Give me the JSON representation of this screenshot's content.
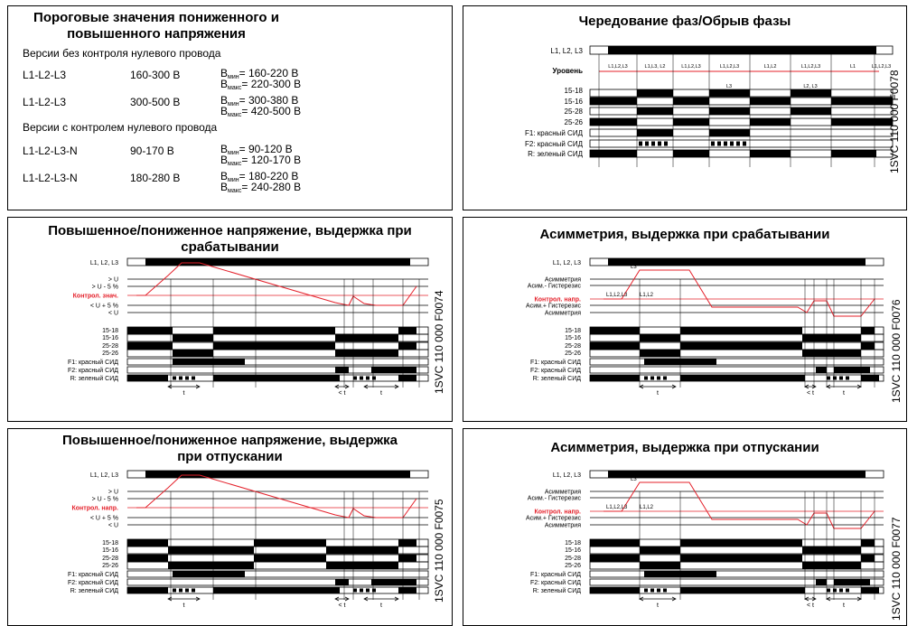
{
  "panels": {
    "voltage_table": {
      "title": "Пороговые значения пониженного и повышенного напряжения",
      "section1": "Версии без контроля нулевого провода",
      "section2": "Версии с контролем нулевого провода",
      "bmin": "мин",
      "bmax": "макс",
      "rows": [
        {
          "phases": "L1-L2-L3",
          "range": "160-300 В",
          "min": "160-220 В",
          "max": "220-300 В"
        },
        {
          "phases": "L1-L2-L3",
          "range": "300-500 В",
          "min": "300-380 В",
          "max": "420-500 В"
        },
        {
          "phases": "L1-L2-L3-N",
          "range": "90-170 В",
          "min": "90-120 В",
          "max": "120-170 В"
        },
        {
          "phases": "L1-L2-L3-N",
          "range": "180-280 В",
          "min": "180-220 В",
          "max": "240-280 В"
        }
      ]
    },
    "phase_seq": {
      "title": "Чередование фаз/Обрыв фазы",
      "code": "1SVC 110 000 F0078",
      "labels": [
        "L1, L2, L3",
        "Уровень",
        "15-18",
        "15-16",
        "25-28",
        "25-26",
        "F1: красный СИД",
        "F2: красный СИД",
        "R: зеленый СИД"
      ],
      "seg_labels": [
        "L1,L2,L3",
        "L1,L3, L2",
        "L1,L2,L3",
        "L1,L2,L3",
        "L1,L2",
        "L1,L2,L3",
        "L1",
        "L1,L2,L3"
      ],
      "low_labels": [
        "L3",
        "L2, L3"
      ]
    },
    "ov_uv_on": {
      "title": "Повышенное/пониженное напряжение, выдержка при срабатывании",
      "code": "1SVC 110 000 F0074",
      "labels": [
        "L1, L2, L3",
        "> U",
        "> U - 5 %",
        "Контрол. знач.",
        "< U + 5 %",
        "< U",
        "15-18",
        "15-16",
        "25-28",
        "25-26",
        "F1: красный СИД",
        "F2: красный СИД",
        "R: зеленый СИД"
      ],
      "t": "t",
      "t_less": "< t"
    },
    "asym_on": {
      "title": "Асимметрия, выдержка при срабатывании",
      "code": "1SVC 110 000 F0076",
      "labels": [
        "L1, L2, L3",
        "Асимметрия",
        "Асим.- Гистерезис",
        "Контрол. напр.",
        "Асим.+ Гистерезис",
        "Асимметрия",
        "15-18",
        "15-16",
        "25-28",
        "25-26",
        "F1: красный СИД",
        "F2: красный СИД",
        "R: зеленый СИД"
      ],
      "curve_labels": [
        "L3",
        "L1,L2,L3",
        "L1,L2"
      ],
      "t": "t",
      "t_less": "< t"
    },
    "ov_uv_off": {
      "title": "Повышенное/пониженное напряжение, выдержка при отпускании",
      "code": "1SVC 110 000 F0075",
      "labels": [
        "L1, L2, L3",
        "> U",
        "> U - 5 %",
        "Контрол. напр.",
        "< U + 5 %",
        "< U",
        "15-18",
        "15-16",
        "25-28",
        "25-26",
        "F1: красный СИД",
        "F2: красный СИД",
        "R: зеленый СИД"
      ],
      "t": "t",
      "t_less": "< t"
    },
    "asym_off": {
      "title": "Асимметрия, выдержка при отпускании",
      "code": "1SVC 110 000 F0077",
      "labels": [
        "L1, L2, L3",
        "Асимметрия",
        "Асим.- Гистерезис",
        "Контрол. напр.",
        "Асим.+ Гистерезис",
        "Асимметрия",
        "15-18",
        "15-16",
        "25-28",
        "25-26",
        "F1: красный СИД",
        "F2: красный СИД",
        "R: зеленый СИД"
      ],
      "curve_labels": [
        "L3",
        "L1,L2,L3",
        "L1,L2"
      ],
      "t": "t",
      "t_less": "< t"
    }
  },
  "colors": {
    "curve": "#e4202a",
    "highlight": "#e4202a",
    "bar": "#000000"
  }
}
